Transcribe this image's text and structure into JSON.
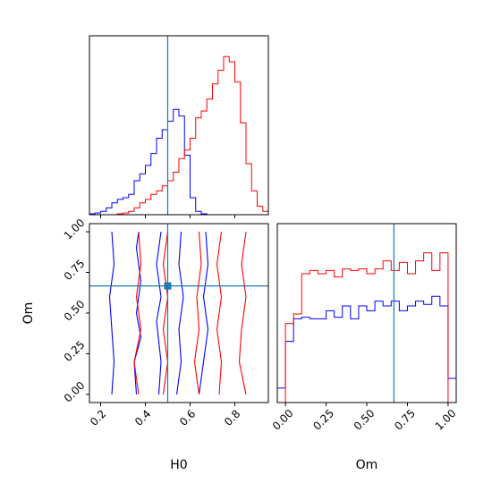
{
  "chart_data": [
    {
      "type": "histogram",
      "panel": "H0 marginal (top-left)",
      "xlim": [
        0.15,
        0.95
      ],
      "truth": 0.5,
      "bins_x": [
        0.15,
        0.175,
        0.2,
        0.225,
        0.25,
        0.275,
        0.3,
        0.325,
        0.35,
        0.375,
        0.4,
        0.425,
        0.45,
        0.475,
        0.5,
        0.525,
        0.55,
        0.575,
        0.6,
        0.625,
        0.65,
        0.675,
        0.7,
        0.725,
        0.75,
        0.775,
        0.8,
        0.825,
        0.85,
        0.875,
        0.9,
        0.925
      ],
      "series": [
        {
          "color": "#0000ff",
          "values": [
            0.005,
            0.01,
            0.02,
            0.04,
            0.07,
            0.09,
            0.1,
            0.12,
            0.2,
            0.24,
            0.29,
            0.36,
            0.45,
            0.5,
            0.55,
            0.62,
            0.58,
            0.35,
            0.1,
            0.02,
            0.005,
            0,
            0,
            0,
            0,
            0,
            0,
            0,
            0,
            0,
            0,
            0
          ]
        },
        {
          "color": "#ff0000",
          "values": [
            0,
            0,
            0,
            0,
            0,
            0.005,
            0.01,
            0.02,
            0.04,
            0.07,
            0.09,
            0.12,
            0.14,
            0.17,
            0.2,
            0.25,
            0.33,
            0.38,
            0.45,
            0.57,
            0.61,
            0.68,
            0.77,
            0.85,
            0.93,
            0.9,
            0.78,
            0.54,
            0.3,
            0.14,
            0.05,
            0.02
          ]
        }
      ]
    },
    {
      "type": "contour",
      "panel": "2D H0 vs Om (bottom-left)",
      "xlabel": "H0",
      "ylabel": "Om",
      "xlim": [
        0.15,
        0.95
      ],
      "ylim": [
        -0.05,
        1.05
      ],
      "xticks": [
        "0.2",
        "0.4",
        "0.6",
        "0.8"
      ],
      "yticks": [
        "0.00",
        "0.25",
        "0.50",
        "0.75",
        "1.00"
      ],
      "truth": {
        "x": 0.5,
        "y": 0.667
      },
      "series": [
        {
          "color": "#0000ff",
          "contours": [
            [
              [
                0.25,
                0.0
              ],
              [
                0.26,
                0.2
              ],
              [
                0.25,
                0.4
              ],
              [
                0.24,
                0.6
              ],
              [
                0.26,
                0.8
              ],
              [
                0.25,
                1.0
              ]
            ],
            [
              [
                0.36,
                0.0
              ],
              [
                0.35,
                0.2
              ],
              [
                0.38,
                0.35
              ],
              [
                0.36,
                0.5
              ],
              [
                0.38,
                0.7
              ],
              [
                0.36,
                0.9
              ],
              [
                0.37,
                1.0
              ]
            ],
            [
              [
                0.46,
                0.0
              ],
              [
                0.47,
                0.2
              ],
              [
                0.45,
                0.45
              ],
              [
                0.47,
                0.6
              ],
              [
                0.45,
                0.8
              ],
              [
                0.47,
                1.0
              ]
            ],
            [
              [
                0.54,
                0.0
              ],
              [
                0.56,
                0.2
              ],
              [
                0.55,
                0.4
              ],
              [
                0.57,
                0.6
              ],
              [
                0.55,
                0.8
              ],
              [
                0.56,
                1.0
              ]
            ],
            [
              [
                0.64,
                0.0
              ],
              [
                0.66,
                0.2
              ],
              [
                0.68,
                0.4
              ],
              [
                0.66,
                0.6
              ],
              [
                0.68,
                0.8
              ],
              [
                0.67,
                1.0
              ]
            ]
          ]
        },
        {
          "color": "#ff0000",
          "contours": [
            [
              [
                0.37,
                0.0
              ],
              [
                0.35,
                0.2
              ],
              [
                0.38,
                0.4
              ],
              [
                0.36,
                0.6
              ],
              [
                0.38,
                0.8
              ],
              [
                0.37,
                1.0
              ]
            ],
            [
              [
                0.48,
                0.0
              ],
              [
                0.5,
                0.2
              ],
              [
                0.48,
                0.4
              ],
              [
                0.5,
                0.6
              ],
              [
                0.48,
                0.8
              ],
              [
                0.5,
                1.0
              ]
            ],
            [
              [
                0.64,
                0.0
              ],
              [
                0.62,
                0.2
              ],
              [
                0.64,
                0.4
              ],
              [
                0.63,
                0.6
              ],
              [
                0.65,
                0.8
              ],
              [
                0.64,
                1.0
              ]
            ],
            [
              [
                0.73,
                0.0
              ],
              [
                0.74,
                0.2
              ],
              [
                0.72,
                0.4
              ],
              [
                0.74,
                0.6
              ],
              [
                0.72,
                0.8
              ],
              [
                0.74,
                1.0
              ]
            ],
            [
              [
                0.85,
                0.0
              ],
              [
                0.82,
                0.2
              ],
              [
                0.83,
                0.4
              ],
              [
                0.85,
                0.6
              ],
              [
                0.83,
                0.8
              ],
              [
                0.85,
                1.0
              ]
            ]
          ]
        }
      ]
    },
    {
      "type": "histogram",
      "panel": "Om marginal (bottom-right)",
      "xlabel": "Om",
      "xlim": [
        -0.05,
        1.05
      ],
      "xticks": [
        "0.00",
        "0.25",
        "0.50",
        "0.75",
        "1.00"
      ],
      "truth": 0.667,
      "bins_x": [
        -0.05,
        0.0,
        0.05,
        0.1,
        0.15,
        0.2,
        0.25,
        0.3,
        0.35,
        0.4,
        0.45,
        0.5,
        0.55,
        0.6,
        0.65,
        0.7,
        0.75,
        0.8,
        0.85,
        0.9,
        0.95,
        1.0
      ],
      "series": [
        {
          "color": "#0000ff",
          "values": [
            0.09,
            0.38,
            0.52,
            0.53,
            0.52,
            0.52,
            0.57,
            0.53,
            0.6,
            0.52,
            0.6,
            0.57,
            0.63,
            0.6,
            0.63,
            0.57,
            0.6,
            0.63,
            0.61,
            0.66,
            0.6,
            0.15
          ]
        },
        {
          "color": "#ff0000",
          "values": [
            0,
            0.49,
            0.55,
            0.8,
            0.82,
            0.8,
            0.82,
            0.78,
            0.83,
            0.82,
            0.83,
            0.8,
            0.83,
            0.88,
            0.82,
            0.87,
            0.8,
            0.88,
            0.93,
            0.82,
            0.93,
            0.0
          ]
        }
      ]
    }
  ]
}
